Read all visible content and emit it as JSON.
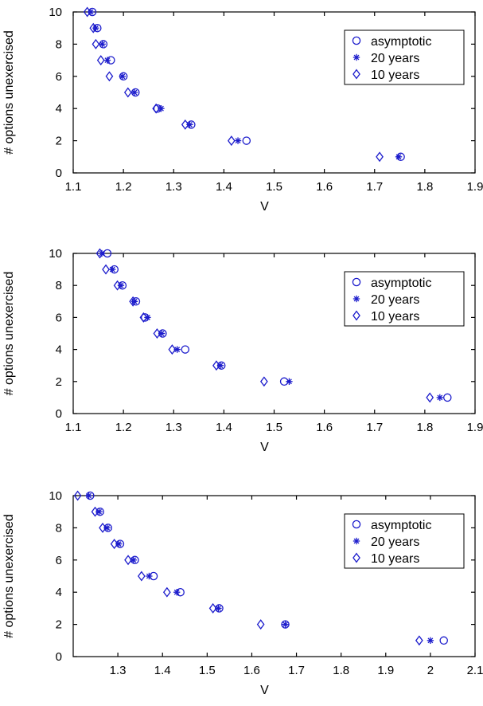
{
  "colors": {
    "marker": "#1c1ccc",
    "axis": "#000000"
  },
  "chart_data": [
    {
      "type": "scatter",
      "xlabel": "V",
      "ylabel": "# options unexercised",
      "xlim": [
        1.1,
        1.9
      ],
      "ylim": [
        0,
        10
      ],
      "xticks": [
        "1.1",
        "1.2",
        "1.3",
        "1.4",
        "1.5",
        "1.6",
        "1.7",
        "1.8",
        "1.9"
      ],
      "yticks": [
        "0",
        "2",
        "4",
        "6",
        "8",
        "10"
      ],
      "grid": false,
      "legend_position": "top-right",
      "series": [
        {
          "name": "asymptotic",
          "marker": "circle",
          "x": [
            1.752,
            1.445,
            1.335,
            1.268,
            1.224,
            1.2,
            1.175,
            1.16,
            1.148,
            1.138
          ],
          "y": [
            1,
            2,
            3,
            4,
            5,
            6,
            7,
            8,
            9,
            10
          ]
        },
        {
          "name": "20 years",
          "marker": "star",
          "x": [
            1.748,
            1.428,
            1.332,
            1.275,
            1.222,
            1.198,
            1.168,
            1.158,
            1.145,
            1.135
          ],
          "y": [
            1,
            2,
            3,
            4,
            5,
            6,
            7,
            8,
            9,
            10
          ]
        },
        {
          "name": "10 years",
          "marker": "diamond",
          "x": [
            1.71,
            1.415,
            1.323,
            1.265,
            1.209,
            1.172,
            1.155,
            1.145,
            1.14,
            1.128
          ],
          "y": [
            1,
            2,
            3,
            4,
            5,
            6,
            7,
            8,
            9,
            10
          ]
        }
      ]
    },
    {
      "type": "scatter",
      "xlabel": "V",
      "ylabel": "# options unexercised",
      "xlim": [
        1.1,
        1.9
      ],
      "ylim": [
        0,
        10
      ],
      "xticks": [
        "1.1",
        "1.2",
        "1.3",
        "1.4",
        "1.5",
        "1.6",
        "1.7",
        "1.8",
        "1.9"
      ],
      "yticks": [
        "0",
        "2",
        "4",
        "6",
        "8",
        "10"
      ],
      "grid": false,
      "legend_position": "top-right",
      "series": [
        {
          "name": "asymptotic",
          "marker": "circle",
          "x": [
            1.845,
            1.52,
            1.395,
            1.323,
            1.278,
            1.243,
            1.225,
            1.198,
            1.182,
            1.168
          ],
          "y": [
            1,
            2,
            3,
            4,
            5,
            6,
            7,
            8,
            9,
            10
          ]
        },
        {
          "name": "20 years",
          "marker": "star",
          "x": [
            1.83,
            1.53,
            1.393,
            1.307,
            1.276,
            1.248,
            1.222,
            1.195,
            1.178,
            1.157
          ],
          "y": [
            1,
            2,
            3,
            4,
            5,
            6,
            7,
            8,
            9,
            10
          ]
        },
        {
          "name": "10 years",
          "marker": "diamond",
          "x": [
            1.81,
            1.48,
            1.385,
            1.297,
            1.267,
            1.24,
            1.219,
            1.188,
            1.165,
            1.153
          ],
          "y": [
            1,
            2,
            3,
            4,
            5,
            6,
            7,
            8,
            9,
            10
          ]
        }
      ]
    },
    {
      "type": "scatter",
      "xlabel": "V",
      "ylabel": "# options unexercised",
      "xlim": [
        1.2,
        2.1
      ],
      "ylim": [
        0,
        10
      ],
      "xticks": [
        "1.3",
        "1.4",
        "1.5",
        "1.6",
        "1.7",
        "1.8",
        "1.9",
        "2",
        "2.1"
      ],
      "yticks": [
        "0",
        "2",
        "4",
        "6",
        "8",
        "10"
      ],
      "grid": false,
      "legend_position": "top-right",
      "series": [
        {
          "name": "asymptotic",
          "marker": "circle",
          "x": [
            2.03,
            1.675,
            1.527,
            1.44,
            1.38,
            1.338,
            1.305,
            1.278,
            1.26,
            1.238
          ],
          "y": [
            1,
            2,
            3,
            4,
            5,
            6,
            7,
            8,
            9,
            10
          ]
        },
        {
          "name": "20 years",
          "marker": "star",
          "x": [
            2.0,
            1.675,
            1.525,
            1.432,
            1.37,
            1.335,
            1.302,
            1.276,
            1.258,
            1.235
          ],
          "y": [
            1,
            2,
            3,
            4,
            5,
            6,
            7,
            8,
            9,
            10
          ]
        },
        {
          "name": "10 years",
          "marker": "diamond",
          "x": [
            1.975,
            1.62,
            1.513,
            1.41,
            1.353,
            1.323,
            1.292,
            1.266,
            1.249,
            1.21
          ],
          "y": [
            1,
            2,
            3,
            4,
            5,
            6,
            7,
            8,
            9,
            10
          ]
        }
      ]
    }
  ]
}
